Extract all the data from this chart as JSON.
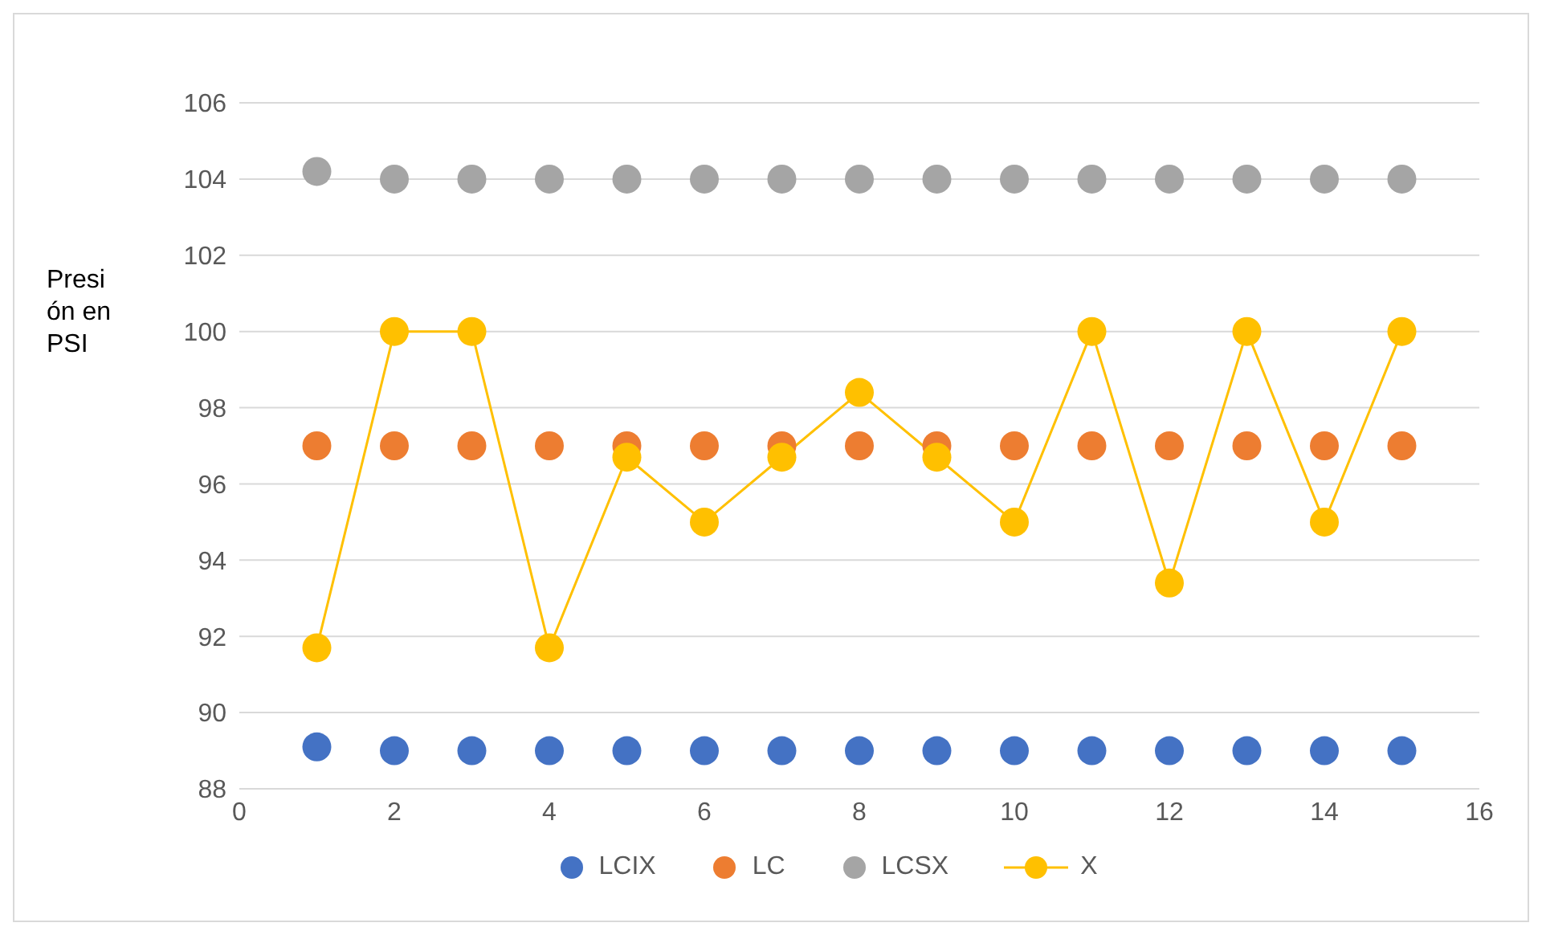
{
  "chart_data": {
    "type": "scatter",
    "ylabel": "Presión en PSI",
    "x": [
      1,
      2,
      3,
      4,
      5,
      6,
      7,
      8,
      9,
      10,
      11,
      12,
      13,
      14,
      15
    ],
    "series": [
      {
        "name": "LCIX",
        "color": "#4472c4",
        "values": [
          89.1,
          89,
          89,
          89,
          89,
          89,
          89,
          89,
          89,
          89,
          89,
          89,
          89,
          89,
          89
        ]
      },
      {
        "name": "LC",
        "color": "#ed7d31",
        "values": [
          97,
          97,
          97,
          97,
          97,
          97,
          97,
          97,
          97,
          97,
          97,
          97,
          97,
          97,
          97
        ]
      },
      {
        "name": "LCSX",
        "color": "#a5a5a5",
        "values": [
          104.2,
          104,
          104,
          104,
          104,
          104,
          104,
          104,
          104,
          104,
          104,
          104,
          104,
          104,
          104
        ]
      },
      {
        "name": "X",
        "type": "line",
        "color": "#ffc000",
        "values": [
          91.7,
          100,
          100,
          91.7,
          96.7,
          95,
          96.7,
          98.4,
          96.7,
          95,
          100,
          93.4,
          100,
          95,
          100
        ]
      }
    ],
    "xlim": [
      0,
      16
    ],
    "xticks": [
      0,
      2,
      4,
      6,
      8,
      10,
      12,
      14,
      16
    ],
    "ylim": [
      88,
      106
    ],
    "yticks": [
      88,
      90,
      92,
      94,
      96,
      98,
      100,
      102,
      104,
      106
    ],
    "grid": "y",
    "legend": "bottom",
    "marker": "circle"
  }
}
